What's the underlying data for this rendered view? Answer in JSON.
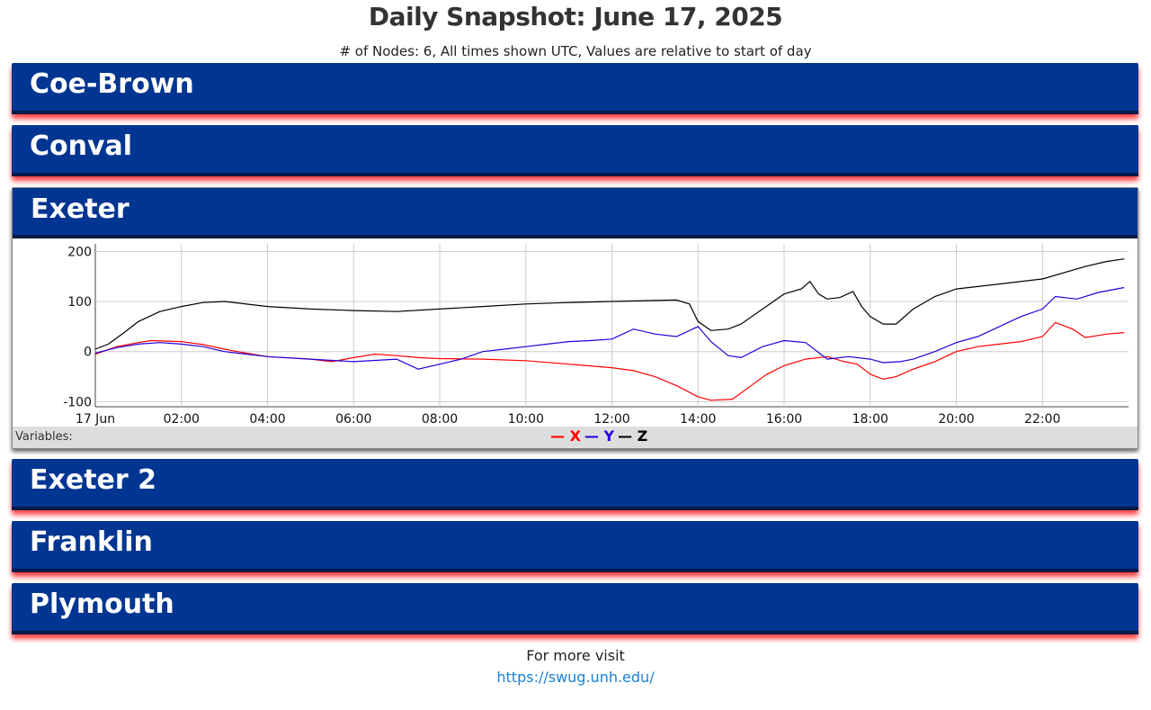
{
  "page": {
    "title": "Daily Snapshot: June 17, 2025",
    "subtitle": "# of Nodes: 6, All times shown UTC, Values are relative to start of day",
    "footer_text": "For more visit",
    "footer_link": "https://swug.unh.edu/"
  },
  "nodes": [
    "Coe-Brown",
    "Conval",
    "Exeter",
    "Exeter 2",
    "Franklin",
    "Plymouth"
  ],
  "expanded_node": "Exeter",
  "variables_label": "Variables:",
  "legend": [
    {
      "name": "X",
      "color": "#ff0000"
    },
    {
      "name": "Y",
      "color": "#2200dd"
    },
    {
      "name": "Z",
      "color": "#000000"
    }
  ],
  "chart_data": {
    "type": "line",
    "x_unit": "hours UTC",
    "xlim": [
      0,
      24
    ],
    "ylim": [
      -110,
      215
    ],
    "x_ticks": [
      "17 Jun",
      "02:00",
      "04:00",
      "06:00",
      "08:00",
      "10:00",
      "12:00",
      "14:00",
      "16:00",
      "18:00",
      "20:00",
      "22:00"
    ],
    "y_ticks": [
      -100,
      0,
      100,
      200
    ],
    "grid": true,
    "series": [
      {
        "name": "X",
        "color": "#ff0000",
        "x": [
          0,
          0.5,
          1,
          1.3,
          2,
          2.5,
          3,
          3.5,
          4,
          5,
          5.5,
          6,
          6.5,
          7,
          7.5,
          8,
          9,
          10,
          11,
          12,
          12.5,
          13,
          13.5,
          14,
          14.3,
          14.8,
          15.2,
          15.6,
          16,
          16.5,
          17,
          17.4,
          17.7,
          18,
          18.3,
          18.6,
          19,
          19.5,
          20,
          20.5,
          21,
          21.5,
          22,
          22.3,
          22.7,
          23,
          23.5,
          23.9
        ],
        "y": [
          -5,
          10,
          18,
          22,
          20,
          14,
          5,
          -3,
          -10,
          -15,
          -20,
          -12,
          -5,
          -8,
          -12,
          -14,
          -15,
          -18,
          -25,
          -32,
          -38,
          -50,
          -68,
          -90,
          -97,
          -95,
          -70,
          -45,
          -28,
          -15,
          -10,
          -20,
          -25,
          -45,
          -55,
          -50,
          -35,
          -20,
          0,
          10,
          15,
          20,
          30,
          58,
          45,
          28,
          35,
          38
        ]
      },
      {
        "name": "Y",
        "color": "#2200dd",
        "x": [
          0,
          0.5,
          1,
          1.5,
          2,
          2.5,
          3,
          3.5,
          4,
          5,
          6,
          7,
          7.5,
          8,
          8.5,
          9,
          9.5,
          10,
          10.5,
          11,
          11.5,
          12,
          12.5,
          13,
          13.5,
          14,
          14.3,
          14.7,
          15,
          15.5,
          16,
          16.5,
          17,
          17.5,
          18,
          18.3,
          18.7,
          19,
          19.5,
          20,
          20.5,
          21,
          21.5,
          22,
          22.3,
          22.8,
          23.3,
          23.9
        ],
        "y": [
          -3,
          8,
          15,
          18,
          15,
          10,
          0,
          -5,
          -10,
          -15,
          -20,
          -15,
          -35,
          -25,
          -15,
          0,
          5,
          10,
          15,
          20,
          22,
          25,
          45,
          35,
          30,
          50,
          20,
          -8,
          -12,
          10,
          22,
          18,
          -15,
          -10,
          -15,
          -22,
          -20,
          -15,
          0,
          18,
          30,
          50,
          70,
          85,
          110,
          105,
          118,
          128
        ]
      },
      {
        "name": "Z",
        "color": "#000000",
        "x": [
          0,
          0.3,
          0.7,
          1,
          1.5,
          2,
          2.5,
          3,
          4,
          5,
          6,
          7,
          8,
          9,
          10,
          11,
          12,
          13,
          13.5,
          13.8,
          14,
          14.3,
          14.7,
          15,
          15.5,
          16,
          16.4,
          16.6,
          16.8,
          17,
          17.3,
          17.6,
          17.8,
          18,
          18.3,
          18.6,
          19,
          19.5,
          20,
          21,
          22,
          23,
          23.5,
          23.9
        ],
        "y": [
          5,
          15,
          40,
          60,
          80,
          90,
          98,
          100,
          90,
          85,
          82,
          80,
          85,
          90,
          95,
          98,
          100,
          102,
          103,
          95,
          60,
          42,
          45,
          55,
          85,
          115,
          125,
          140,
          115,
          105,
          108,
          120,
          90,
          70,
          55,
          55,
          85,
          110,
          125,
          135,
          145,
          170,
          180,
          185
        ]
      }
    ]
  }
}
